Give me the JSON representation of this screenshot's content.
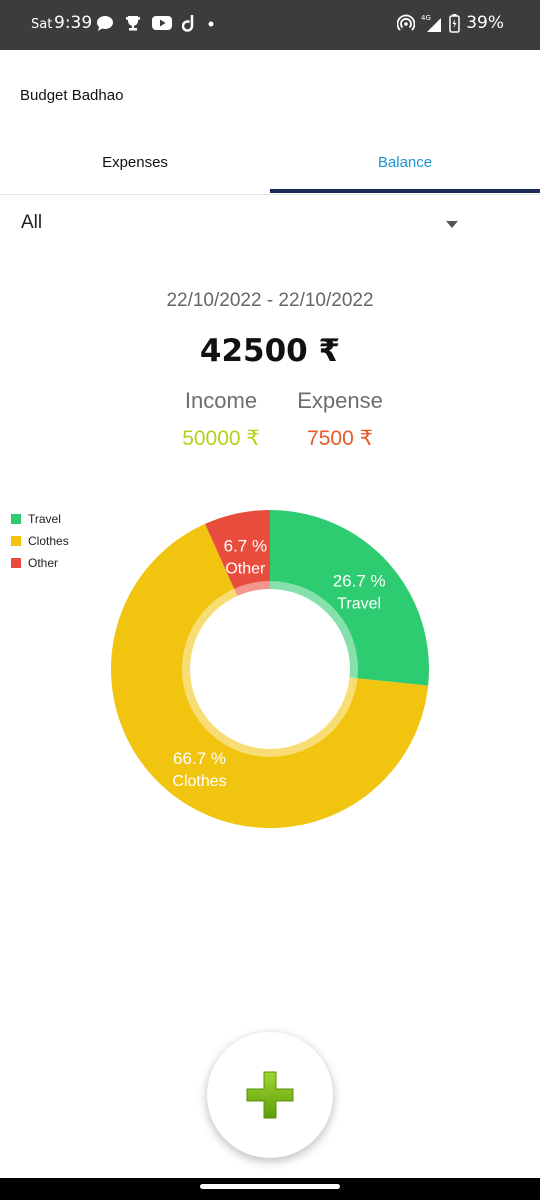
{
  "status_bar": {
    "day": "Sat",
    "time": "9:39",
    "network": "4G",
    "battery": "39%",
    "icons": [
      "chat-bubble-icon",
      "trophy-icon",
      "youtube-icon",
      "dailyhunt-icon",
      "dot-icon",
      "hotspot-icon",
      "signal-icon",
      "battery-icon"
    ]
  },
  "app_bar": {
    "title": "Budget Badhao"
  },
  "tabs": [
    {
      "label": "Expenses",
      "selected": false
    },
    {
      "label": "Balance",
      "selected": true
    }
  ],
  "filter": {
    "selected": "All"
  },
  "summary": {
    "date_range": "22/10/2022 - 22/10/2022",
    "balance": "42500 ₹",
    "income_label": "Income",
    "income_value": "50000 ₹",
    "expense_label": "Expense",
    "expense_value": "7500 ₹"
  },
  "colors": {
    "travel": "#2ecc71",
    "clothes": "#f1c40f",
    "other": "#e74c3c",
    "income": "#b5d11a",
    "expense": "#e8592a",
    "tab_active": "#1a95d6",
    "tab_indicator": "#1b2a5b"
  },
  "chart_data": {
    "type": "pie",
    "donut": true,
    "categories": [
      "Travel",
      "Clothes",
      "Other"
    ],
    "values": [
      26.7,
      66.7,
      6.7
    ],
    "labels": [
      "26.7 %",
      "66.7 %",
      "6.7 %"
    ],
    "colors": [
      "#2ecc71",
      "#f1c40f",
      "#e74c3c"
    ],
    "legend": "top-left"
  },
  "fab": {
    "icon": "plus-icon"
  }
}
